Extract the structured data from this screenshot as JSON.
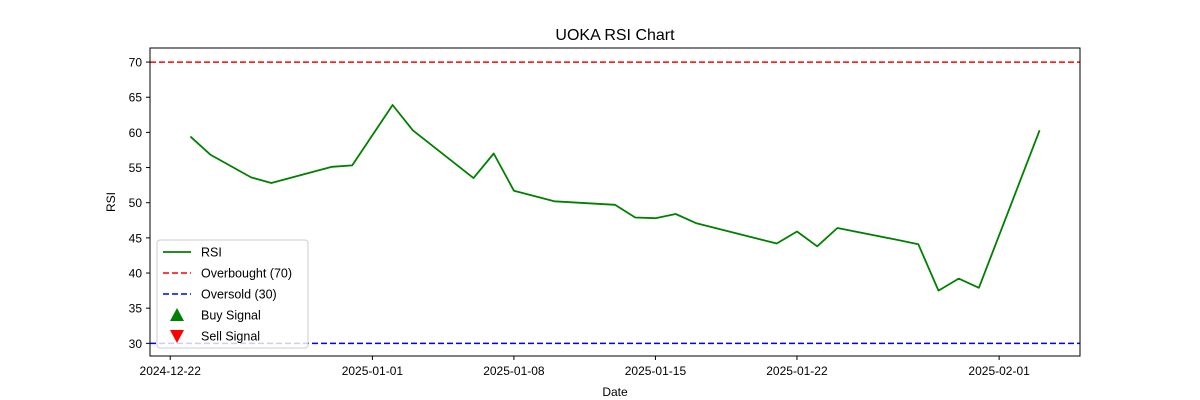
{
  "chart_data": {
    "type": "line",
    "title": "UOKA RSI Chart",
    "xlabel": "Date",
    "ylabel": "RSI",
    "ylim": [
      28.2,
      72.0
    ],
    "xlim": [
      "2024-12-21",
      "2025-02-05"
    ],
    "x_tick_labels": [
      "2024-12-22",
      "2025-01-01",
      "2025-01-08",
      "2025-01-15",
      "2025-01-22",
      "2025-02-01"
    ],
    "y_tick_labels": [
      "30",
      "35",
      "40",
      "45",
      "50",
      "55",
      "60",
      "65",
      "70"
    ],
    "grid": false,
    "legend_position": "lower-left",
    "series": [
      {
        "name": "RSI",
        "color": "#008000",
        "style": "solid",
        "points": [
          {
            "x": "2024-12-23",
            "y": 59.4
          },
          {
            "x": "2024-12-24",
            "y": 56.8
          },
          {
            "x": "2024-12-26",
            "y": 53.6
          },
          {
            "x": "2024-12-27",
            "y": 52.8
          },
          {
            "x": "2024-12-30",
            "y": 55.1
          },
          {
            "x": "2024-12-31",
            "y": 55.3
          },
          {
            "x": "2025-01-02",
            "y": 63.9
          },
          {
            "x": "2025-01-03",
            "y": 60.3
          },
          {
            "x": "2025-01-06",
            "y": 53.5
          },
          {
            "x": "2025-01-07",
            "y": 57.0
          },
          {
            "x": "2025-01-08",
            "y": 51.7
          },
          {
            "x": "2025-01-10",
            "y": 50.2
          },
          {
            "x": "2025-01-13",
            "y": 49.7
          },
          {
            "x": "2025-01-14",
            "y": 47.9
          },
          {
            "x": "2025-01-15",
            "y": 47.8
          },
          {
            "x": "2025-01-16",
            "y": 48.4
          },
          {
            "x": "2025-01-17",
            "y": 47.1
          },
          {
            "x": "2025-01-21",
            "y": 44.2
          },
          {
            "x": "2025-01-22",
            "y": 45.9
          },
          {
            "x": "2025-01-23",
            "y": 43.8
          },
          {
            "x": "2025-01-24",
            "y": 46.4
          },
          {
            "x": "2025-01-27",
            "y": 44.7
          },
          {
            "x": "2025-01-28",
            "y": 44.1
          },
          {
            "x": "2025-01-29",
            "y": 37.5
          },
          {
            "x": "2025-01-30",
            "y": 39.2
          },
          {
            "x": "2025-01-31",
            "y": 37.9
          },
          {
            "x": "2025-02-03",
            "y": 60.3
          }
        ]
      },
      {
        "name": "Overbought (70)",
        "color": "#ff0000",
        "style": "dashed",
        "y": 70
      },
      {
        "name": "Oversold (30)",
        "color": "#0000ff",
        "style": "dashed",
        "y": 30
      }
    ],
    "markers": [
      {
        "name": "Buy Signal",
        "color": "#008000",
        "shape": "triangle-up",
        "points": []
      },
      {
        "name": "Sell Signal",
        "color": "#ff0000",
        "shape": "triangle-down",
        "points": []
      }
    ]
  }
}
